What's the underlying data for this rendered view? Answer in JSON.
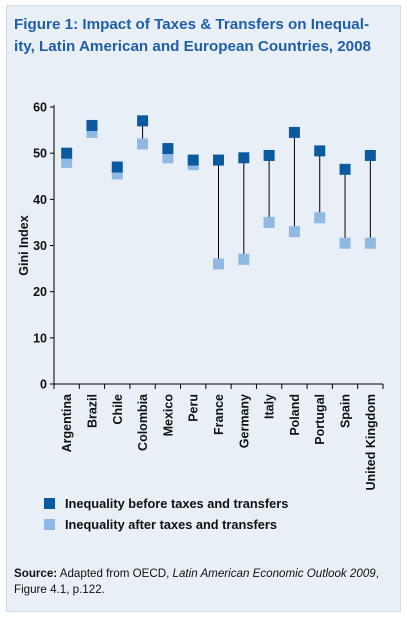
{
  "figure": {
    "title_line1": "Figure 1: Impact of Taxes & Transfers on Inequal-",
    "title_line2": "ity, Latin American and European Countries, 2008",
    "source_label": "Source:",
    "source_text_before": " Adapted from OECD, ",
    "source_italic": "Latin American Economic Outlook 2009",
    "source_text_after": ",",
    "source_line2": "Figure 4.1, p.122."
  },
  "colors": {
    "before": "#0b5aa0",
    "after": "#8fb9e2",
    "title": "#1f5fa7",
    "background": "#e9eff7"
  },
  "chart_data": {
    "type": "scatter",
    "ylabel": "Gini Index",
    "ylim": [
      0,
      60
    ],
    "yticks": [
      0,
      10,
      20,
      30,
      40,
      50,
      60
    ],
    "grid": false,
    "legend_position": "bottom",
    "categories": [
      "Argentina",
      "Brazil",
      "Chile",
      "Colombia",
      "Mexico",
      "Peru",
      "France",
      "Germany",
      "Italy",
      "Poland",
      "Portugal",
      "Spain",
      "United Kingdom"
    ],
    "series": [
      {
        "name": "Inequality before taxes and transfers",
        "values": [
          50,
          56,
          47,
          57,
          51,
          48.5,
          48.5,
          49,
          49.5,
          54.5,
          50.5,
          46.5,
          49.5
        ]
      },
      {
        "name": "Inequality after taxes and transfers",
        "values": [
          48,
          54.5,
          45.5,
          52,
          49,
          47.5,
          26,
          27,
          35,
          33,
          36,
          30.5,
          30.5
        ]
      }
    ]
  }
}
